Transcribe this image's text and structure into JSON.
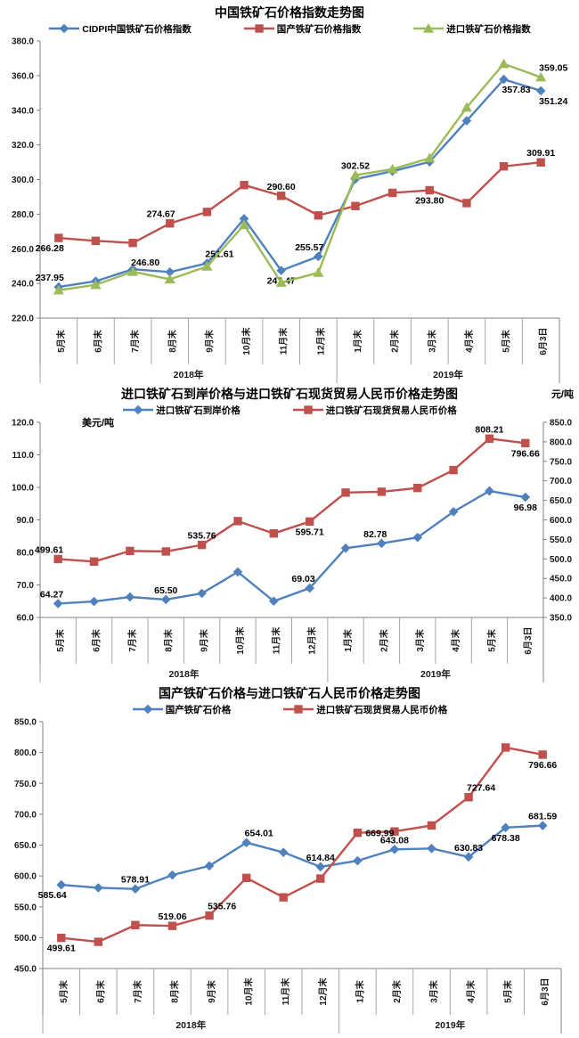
{
  "charts": [
    {
      "title": "中国铁矿石价格指数走势图",
      "x_categories": [
        "5月末",
        "6月末",
        "7月末",
        "8月末",
        "9月末",
        "10月末",
        "11月末",
        "12月末",
        "1月末",
        "2月末",
        "3月末",
        "4月末",
        "5月末",
        "6月3日"
      ],
      "year_groups": [
        {
          "label": "2018年",
          "count": 8
        },
        {
          "label": "2019年",
          "count": 6
        }
      ],
      "y_axis": {
        "min": 220,
        "max": 380,
        "step": 20
      },
      "chart_type": "line",
      "series": [
        {
          "name": "CIDPI中国铁矿石价格指数",
          "color": "#4F81BD",
          "marker": "diamond",
          "axis": "y",
          "values": [
            237.95,
            241.3,
            248.2,
            246.6,
            251.61,
            277.4,
            247.47,
            255.57,
            300.2,
            304.8,
            310.2,
            333.9,
            357.83,
            351.24
          ],
          "point_labels": [
            {
              "index": 0,
              "text": "237.95",
              "position": "above-left"
            },
            {
              "index": 4,
              "text": "251.61",
              "position": "above-right"
            },
            {
              "index": 6,
              "text": "247.47",
              "position": "below"
            },
            {
              "index": 7,
              "text": "255.57",
              "position": "above-left"
            },
            {
              "index": 12,
              "text": "357.83",
              "position": "below-right"
            },
            {
              "index": 13,
              "text": "351.24",
              "position": "below-right"
            }
          ]
        },
        {
          "name": "国产铁矿石价格指数",
          "color": "#C0504D",
          "marker": "square",
          "axis": "y",
          "values": [
            266.28,
            264.6,
            263.4,
            274.67,
            281.3,
            296.8,
            290.6,
            279.3,
            284.7,
            292.3,
            293.8,
            286.4,
            307.6,
            309.91
          ],
          "point_labels": [
            {
              "index": 0,
              "text": "266.28",
              "position": "below-left"
            },
            {
              "index": 3,
              "text": "274.67",
              "position": "above-left"
            },
            {
              "index": 6,
              "text": "290.60",
              "position": "above"
            },
            {
              "index": 10,
              "text": "293.80",
              "position": "below"
            },
            {
              "index": 13,
              "text": "309.91",
              "position": "above"
            }
          ]
        },
        {
          "name": "进口铁矿石价格指数",
          "color": "#9BBB59",
          "marker": "triangle",
          "axis": "y",
          "values": [
            236.1,
            239.2,
            246.8,
            242.4,
            249.8,
            273.8,
            240.5,
            246.2,
            302.52,
            306.0,
            312.3,
            341.6,
            366.8,
            359.05
          ],
          "point_labels": [
            {
              "index": 2,
              "text": "246.80",
              "position": "above-right"
            },
            {
              "index": 8,
              "text": "302.52",
              "position": "above"
            },
            {
              "index": 13,
              "text": "359.05",
              "position": "above-right"
            }
          ]
        }
      ]
    },
    {
      "title": "进口铁矿石到岸价格与进口铁矿石现货贸易人民币价格走势图",
      "axis_units": {
        "left": "美元/吨",
        "right": "元/吨"
      },
      "x_categories": [
        "5月末",
        "6月末",
        "7月末",
        "8月末",
        "9月末",
        "10月末",
        "11月末",
        "12月末",
        "1月末",
        "2月末",
        "3月末",
        "4月末",
        "5月末",
        "6月3日"
      ],
      "year_groups": [
        {
          "label": "2018年",
          "count": 8
        },
        {
          "label": "2019年",
          "count": 6
        }
      ],
      "y_axis": {
        "min": 60,
        "max": 120,
        "step": 10
      },
      "y2_axis": {
        "min": 350,
        "max": 850,
        "step": 50
      },
      "chart_type": "line",
      "series": [
        {
          "name": "进口铁矿石到岸价格",
          "color": "#4F81BD",
          "marker": "diamond",
          "axis": "y",
          "values": [
            64.27,
            64.9,
            66.3,
            65.5,
            67.4,
            74.0,
            65.0,
            69.03,
            81.3,
            82.78,
            84.6,
            92.5,
            98.9,
            96.98
          ],
          "point_labels": [
            {
              "index": 0,
              "text": "64.27",
              "position": "above-left"
            },
            {
              "index": 3,
              "text": "65.50",
              "position": "above"
            },
            {
              "index": 7,
              "text": "69.03",
              "position": "above-left"
            },
            {
              "index": 9,
              "text": "82.78",
              "position": "above-left"
            },
            {
              "index": 13,
              "text": "96.98",
              "position": "below"
            }
          ]
        },
        {
          "name": "进口铁矿石现货贸易人民币价格",
          "color": "#C0504D",
          "marker": "square",
          "axis": "y2",
          "values": [
            499.61,
            493.2,
            520.4,
            519.06,
            535.76,
            596.8,
            565.3,
            595.71,
            669.99,
            672.1,
            681.8,
            727.64,
            808.21,
            796.66
          ],
          "point_labels": [
            {
              "index": 0,
              "text": "499.61",
              "position": "above-left"
            },
            {
              "index": 4,
              "text": "535.76",
              "position": "above"
            },
            {
              "index": 7,
              "text": "595.71",
              "position": "below"
            },
            {
              "index": 12,
              "text": "808.21",
              "position": "above"
            },
            {
              "index": 13,
              "text": "796.66",
              "position": "below"
            }
          ]
        }
      ]
    },
    {
      "title": "国产铁矿石价格与进口铁矿石人民币价格走势图",
      "x_categories": [
        "5月末",
        "6月末",
        "7月末",
        "8月末",
        "9月末",
        "10月末",
        "11月末",
        "12月末",
        "1月末",
        "2月末",
        "3月末",
        "4月末",
        "5月末",
        "6月3日"
      ],
      "year_groups": [
        {
          "label": "2018年",
          "count": 8
        },
        {
          "label": "2019年",
          "count": 6
        }
      ],
      "y_axis": {
        "min": 450,
        "max": 850,
        "step": 50
      },
      "chart_type": "line",
      "series": [
        {
          "name": "国产铁矿石价格",
          "color": "#4F81BD",
          "marker": "diamond",
          "axis": "y",
          "values": [
            585.64,
            580.8,
            578.91,
            601.5,
            616.4,
            654.01,
            638.2,
            614.84,
            624.6,
            643.08,
            644.5,
            630.83,
            678.38,
            681.59
          ],
          "point_labels": [
            {
              "index": 0,
              "text": "585.64",
              "position": "below-left"
            },
            {
              "index": 2,
              "text": "578.91",
              "position": "above"
            },
            {
              "index": 5,
              "text": "654.01",
              "position": "above-right"
            },
            {
              "index": 7,
              "text": "614.84",
              "position": "above"
            },
            {
              "index": 9,
              "text": "643.08",
              "position": "above"
            },
            {
              "index": 11,
              "text": "630.83",
              "position": "above"
            },
            {
              "index": 12,
              "text": "678.38",
              "position": "below"
            },
            {
              "index": 13,
              "text": "681.59",
              "position": "above"
            }
          ]
        },
        {
          "name": "进口铁矿石现货贸易人民币价格",
          "color": "#C0504D",
          "marker": "square",
          "axis": "y",
          "values": [
            499.61,
            493.2,
            520.4,
            519.06,
            535.76,
            596.8,
            565.3,
            595.71,
            669.99,
            672.1,
            681.8,
            727.64,
            808.21,
            796.66
          ],
          "point_labels": [
            {
              "index": 0,
              "text": "499.61",
              "position": "below"
            },
            {
              "index": 3,
              "text": "519.06",
              "position": "above"
            },
            {
              "index": 4,
              "text": "535.76",
              "position": "above-right"
            },
            {
              "index": 8,
              "text": "669.99",
              "position": "right"
            },
            {
              "index": 11,
              "text": "727.64",
              "position": "above-right"
            },
            {
              "index": 13,
              "text": "796.66",
              "position": "below"
            }
          ]
        }
      ]
    }
  ],
  "chart_data": [
    {
      "type": "line",
      "title": "中国铁矿石价格指数走势图",
      "categories": [
        "5月末",
        "6月末",
        "7月末",
        "8月末",
        "9月末",
        "10月末",
        "11月末",
        "12月末",
        "1月末",
        "2月末",
        "3月末",
        "4月末",
        "5月末",
        "6月3日"
      ],
      "category_groups": [
        "2018年 (first 8)",
        "2019年 (last 6)"
      ],
      "ylim": [
        220.0,
        380.0
      ],
      "ytick_step": 20,
      "grid": false,
      "legend_position": "top",
      "series": [
        {
          "name": "CIDPI中国铁矿石价格指数",
          "values": [
            237.95,
            241.3,
            248.2,
            246.6,
            251.61,
            277.4,
            247.47,
            255.57,
            300.2,
            304.8,
            310.2,
            333.9,
            357.83,
            351.24
          ]
        },
        {
          "name": "国产铁矿石价格指数",
          "values": [
            266.28,
            264.6,
            263.4,
            274.67,
            281.3,
            296.8,
            290.6,
            279.3,
            284.7,
            292.3,
            293.8,
            286.4,
            307.6,
            309.91
          ]
        },
        {
          "name": "进口铁矿石价格指数",
          "values": [
            236.1,
            239.2,
            246.8,
            242.4,
            249.8,
            273.8,
            240.5,
            246.2,
            302.52,
            306.0,
            312.3,
            341.6,
            366.8,
            359.05
          ]
        }
      ]
    },
    {
      "type": "line",
      "title": "进口铁矿石到岸价格与进口铁矿石现货贸易人民币价格走势图",
      "categories": [
        "5月末",
        "6月末",
        "7月末",
        "8月末",
        "9月末",
        "10月末",
        "11月末",
        "12月末",
        "1月末",
        "2月末",
        "3月末",
        "4月末",
        "5月末",
        "6月3日"
      ],
      "ylabel": "美元/吨",
      "y2label": "元/吨",
      "ylim": [
        60.0,
        120.0
      ],
      "y2lim": [
        350.0,
        850.0
      ],
      "grid": false,
      "legend_position": "top",
      "series": [
        {
          "name": "进口铁矿石到岸价格",
          "axis": "left",
          "values": [
            64.27,
            64.9,
            66.3,
            65.5,
            67.4,
            74.0,
            65.0,
            69.03,
            81.3,
            82.78,
            84.6,
            92.5,
            98.9,
            96.98
          ]
        },
        {
          "name": "进口铁矿石现货贸易人民币价格",
          "axis": "right",
          "values": [
            499.61,
            493.2,
            520.4,
            519.06,
            535.76,
            596.8,
            565.3,
            595.71,
            669.99,
            672.1,
            681.8,
            727.64,
            808.21,
            796.66
          ]
        }
      ]
    },
    {
      "type": "line",
      "title": "国产铁矿石价格与进口铁矿石人民币价格走势图",
      "categories": [
        "5月末",
        "6月末",
        "7月末",
        "8月末",
        "9月末",
        "10月末",
        "11月末",
        "12月末",
        "1月末",
        "2月末",
        "3月末",
        "4月末",
        "5月末",
        "6月3日"
      ],
      "ylim": [
        450.0,
        850.0
      ],
      "ytick_step": 50,
      "grid": false,
      "legend_position": "top",
      "series": [
        {
          "name": "国产铁矿石价格",
          "values": [
            585.64,
            580.8,
            578.91,
            601.5,
            616.4,
            654.01,
            638.2,
            614.84,
            624.6,
            643.08,
            644.5,
            630.83,
            678.38,
            681.59
          ]
        },
        {
          "name": "进口铁矿石现货贸易人民币价格",
          "values": [
            499.61,
            493.2,
            520.4,
            519.06,
            535.76,
            596.8,
            565.3,
            595.71,
            669.99,
            672.1,
            681.8,
            727.64,
            808.21,
            796.66
          ]
        }
      ]
    }
  ]
}
